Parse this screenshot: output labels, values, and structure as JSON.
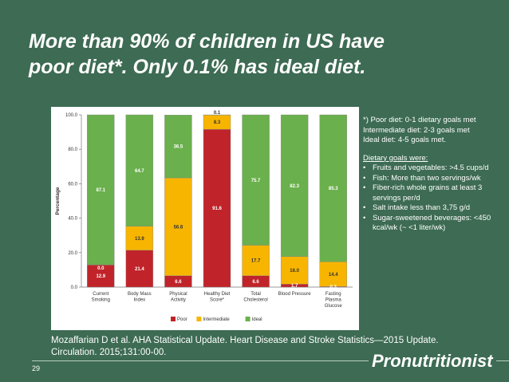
{
  "slide": {
    "title_line1": "More than 90% of children in US have",
    "title_line2": "poor diet*. Only 0.1% has ideal diet.",
    "page_number": "29",
    "brand": "Pronutritionist",
    "citation_line1": "Mozaffarian D et al. AHA Statistical Update. Heart Disease and Stroke Statistics—2015 Update.",
    "citation_line2": "Circulation. 2015;131:00-00."
  },
  "notes": {
    "poor": "*) Poor diet: 0-1 dietary goals met",
    "intermediate": "Intermediate diet: 2-3 goals met",
    "ideal": "Ideal diet: 4-5 goals met.",
    "goals_title": "Dietary goals were:",
    "goals": [
      "Fruits and vegetables: >4.5 cups/d",
      "Fish: More than two servings/wk",
      "Fiber-rich whole grains at least 3 servings per/d",
      "Salt intake less than 3,75 g/d",
      "Sugar-sweetened beverages: <450 kcal/wk (~ <1 liter/wk)"
    ]
  },
  "chart_data": {
    "type": "bar",
    "stacked": true,
    "title": "",
    "ylabel": "Percentage",
    "xlabel": "",
    "ylim": [
      0,
      100
    ],
    "yticks": [
      "0.0",
      "20.0",
      "40.0",
      "60.0",
      "80.0",
      "100.0"
    ],
    "categories": [
      [
        "Current",
        "Smoking"
      ],
      [
        "Body Mass",
        "Index"
      ],
      [
        "Physical",
        "Activity"
      ],
      [
        "Healthy Diet",
        "Score*"
      ],
      [
        "Total",
        "Cholesterol"
      ],
      [
        "Blood Pressure"
      ],
      [
        "Fasting",
        "Plasma",
        "Glucose"
      ]
    ],
    "series": [
      {
        "name": "Poor",
        "color": "#c0242a",
        "label_color": "#ffffff",
        "values": [
          12.9,
          21.4,
          6.6,
          91.6,
          6.6,
          1.7,
          0.3
        ],
        "labels": [
          "12.9",
          "21.4",
          "6.6",
          "91.6",
          "6.6",
          "1.7",
          "0.3"
        ]
      },
      {
        "name": "Intermediate",
        "color": "#f7b500",
        "label_color": "#333333",
        "values": [
          0.0,
          13.9,
          56.8,
          8.3,
          17.7,
          16.0,
          14.4
        ],
        "labels": [
          "0.0",
          "13.9",
          "56.8",
          "8.3",
          "17.7",
          "16.0",
          "14.4"
        ]
      },
      {
        "name": "Ideal",
        "color": "#6ab04c",
        "label_color": "#ffffff",
        "values": [
          87.1,
          64.7,
          36.5,
          0.1,
          75.7,
          82.3,
          85.3
        ],
        "labels": [
          "87.1",
          "64.7",
          "36.5",
          "0.1",
          "75.7",
          "82.3",
          "85.3"
        ]
      }
    ],
    "legend": [
      "Poor",
      "Intermediate",
      "Ideal"
    ],
    "legend_position": "bottom"
  }
}
